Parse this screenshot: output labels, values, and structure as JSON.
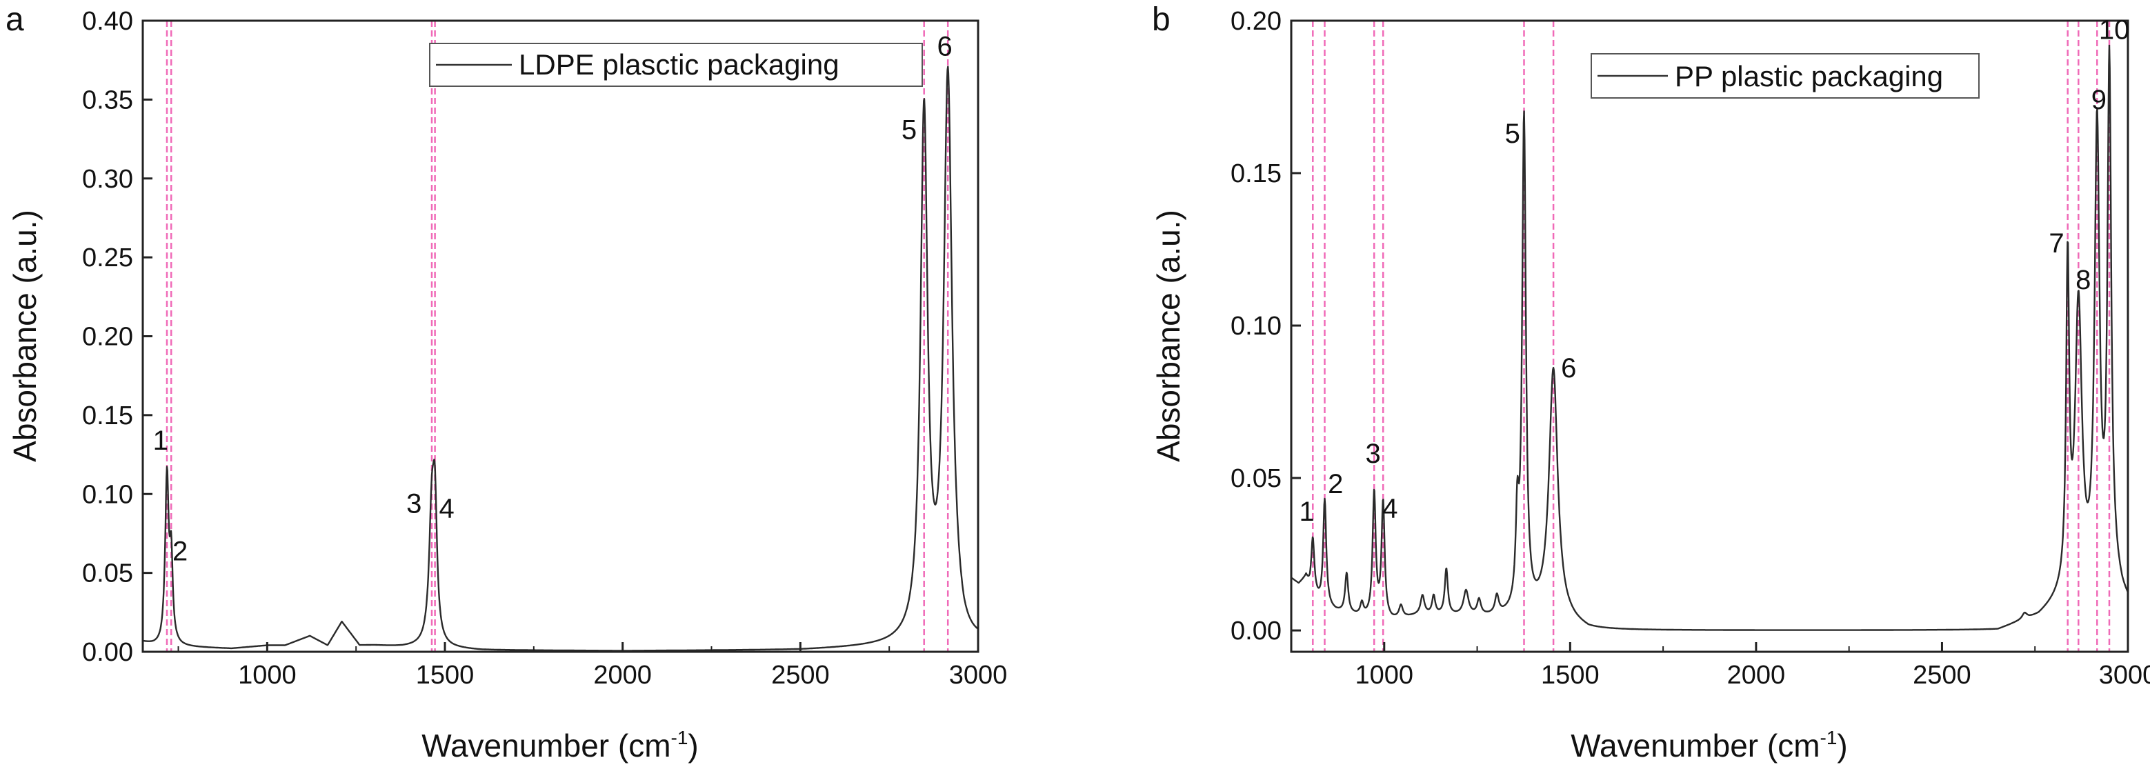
{
  "chart_data": [
    {
      "type": "line",
      "panel_letter": "a",
      "legend": "LDPE plasctic packaging",
      "xlabel_main": "Wavenumber (cm",
      "xlabel_sup": "-1",
      "xlabel_end": ")",
      "ylabel": "Absorbance (a.u.)",
      "xlim": [
        650,
        3000
      ],
      "ylim": [
        0,
        0.4
      ],
      "xticks": [
        1000,
        1500,
        2000,
        2500,
        3000
      ],
      "yticks": [
        0.0,
        0.05,
        0.1,
        0.15,
        0.2,
        0.25,
        0.3,
        0.35,
        0.4
      ],
      "ytick_labels": [
        "0.00",
        "0.05",
        "0.10",
        "0.15",
        "0.20",
        "0.25",
        "0.30",
        "0.35",
        "0.40"
      ],
      "vlines": [
        718,
        730,
        1463,
        1472,
        2848,
        2915
      ],
      "peak_labels": [
        {
          "text": "1",
          "x": 700,
          "y": 0.128
        },
        {
          "text": "2",
          "x": 755,
          "y": 0.058
        },
        {
          "text": "3",
          "x": 1413,
          "y": 0.088
        },
        {
          "text": "4",
          "x": 1505,
          "y": 0.085
        },
        {
          "text": "5",
          "x": 2806,
          "y": 0.325
        },
        {
          "text": "6",
          "x": 2906,
          "y": 0.378
        }
      ],
      "series": {
        "name": "LDPE plasctic packaging",
        "baseline": [
          [
            650,
            0.006
          ],
          [
            680,
            0.004
          ],
          [
            700,
            0.003
          ],
          [
            710,
            0.004
          ],
          [
            760,
            0.003
          ],
          [
            900,
            0.002
          ],
          [
            1000,
            0.004
          ],
          [
            1050,
            0.004
          ],
          [
            1120,
            0.01
          ],
          [
            1170,
            0.004
          ],
          [
            1210,
            0.019
          ],
          [
            1260,
            0.004
          ],
          [
            1300,
            0.004
          ],
          [
            1380,
            0.003
          ],
          [
            1440,
            0.003
          ],
          [
            1520,
            0.002
          ],
          [
            1600,
            0.001
          ],
          [
            2000,
            0.0005
          ],
          [
            2500,
            0.001
          ],
          [
            2780,
            0.003
          ],
          [
            2880,
            0.003
          ],
          [
            2940,
            0.004
          ],
          [
            2960,
            0.0
          ],
          [
            3000,
            0.003
          ]
        ],
        "peaks": [
          {
            "center": 718,
            "height": 0.106,
            "width": 6
          },
          {
            "center": 730,
            "height": 0.051,
            "width": 5
          },
          {
            "center": 1463,
            "height": 0.08,
            "width": 9
          },
          {
            "center": 1472,
            "height": 0.075,
            "width": 7
          },
          {
            "center": 2848,
            "height": 0.333,
            "width": 12
          },
          {
            "center": 2915,
            "height": 0.357,
            "width": 14
          }
        ]
      }
    },
    {
      "type": "line",
      "panel_letter": "b",
      "legend": "PP plastic packaging",
      "xlabel_main": "Wavenumber (cm",
      "xlabel_sup": "-1",
      "xlabel_end": ")",
      "ylabel": "Absorbance (a.u.)",
      "xlim": [
        750,
        3000
      ],
      "ylim": [
        -0.007,
        0.2
      ],
      "xticks": [
        1000,
        1500,
        2000,
        2500,
        3000
      ],
      "yticks": [
        0.0,
        0.05,
        0.1,
        0.15,
        0.2
      ],
      "ytick_labels": [
        "0.00",
        "0.05",
        "0.10",
        "0.15",
        "0.20"
      ],
      "vlines": [
        808,
        840,
        973,
        997,
        1376,
        1455,
        2838,
        2867,
        2917,
        2950
      ],
      "peak_labels": [
        {
          "text": "1",
          "x": 792,
          "y": 0.036
        },
        {
          "text": "2",
          "x": 869,
          "y": 0.045
        },
        {
          "text": "3",
          "x": 970,
          "y": 0.055
        },
        {
          "text": "4",
          "x": 1016,
          "y": 0.037
        },
        {
          "text": "5",
          "x": 1345,
          "y": 0.16
        },
        {
          "text": "6",
          "x": 1496,
          "y": 0.083
        },
        {
          "text": "7",
          "x": 2808,
          "y": 0.124
        },
        {
          "text": "8",
          "x": 2880,
          "y": 0.112
        },
        {
          "text": "9",
          "x": 2922,
          "y": 0.171
        },
        {
          "text": "10",
          "x": 2963,
          "y": 0.194
        }
      ],
      "series": {
        "name": "PP plastic packaging",
        "baseline": [
          [
            750,
            0.017
          ],
          [
            770,
            0.015
          ],
          [
            790,
            0.017
          ],
          [
            800,
            0.013
          ],
          [
            830,
            0.008
          ],
          [
            870,
            0.006
          ],
          [
            950,
            0.004
          ],
          [
            1020,
            0.003
          ],
          [
            1100,
            0.005
          ],
          [
            1300,
            0.004
          ],
          [
            1340,
            0.004
          ],
          [
            1420,
            0.004
          ],
          [
            1500,
            0.002
          ],
          [
            1550,
            0.0
          ],
          [
            2000,
            0.0
          ],
          [
            2500,
            0.0
          ],
          [
            2650,
            0.0
          ],
          [
            2700,
            0.002
          ],
          [
            2760,
            0.004
          ],
          [
            2830,
            0.01
          ],
          [
            2890,
            0.01
          ],
          [
            2930,
            0.012
          ],
          [
            2965,
            0.015
          ],
          [
            2985,
            0.01
          ],
          [
            3000,
            0.008
          ]
        ],
        "peaks": [
          {
            "center": 808,
            "height": 0.018,
            "width": 5
          },
          {
            "center": 840,
            "height": 0.035,
            "width": 5
          },
          {
            "center": 899,
            "height": 0.013,
            "width": 5
          },
          {
            "center": 940,
            "height": 0.004,
            "width": 5
          },
          {
            "center": 973,
            "height": 0.041,
            "width": 5
          },
          {
            "center": 997,
            "height": 0.038,
            "width": 5
          },
          {
            "center": 1045,
            "height": 0.004,
            "width": 6
          },
          {
            "center": 1103,
            "height": 0.006,
            "width": 6
          },
          {
            "center": 1133,
            "height": 0.006,
            "width": 5
          },
          {
            "center": 1167,
            "height": 0.015,
            "width": 5
          },
          {
            "center": 1220,
            "height": 0.008,
            "width": 8
          },
          {
            "center": 1255,
            "height": 0.005,
            "width": 6
          },
          {
            "center": 1303,
            "height": 0.006,
            "width": 6
          },
          {
            "center": 1358,
            "height": 0.028,
            "width": 5
          },
          {
            "center": 1376,
            "height": 0.162,
            "width": 6
          },
          {
            "center": 1455,
            "height": 0.082,
            "width": 14
          },
          {
            "center": 2722,
            "height": 0.002,
            "width": 8
          },
          {
            "center": 2838,
            "height": 0.105,
            "width": 5
          },
          {
            "center": 2867,
            "height": 0.094,
            "width": 11
          },
          {
            "center": 2917,
            "height": 0.15,
            "width": 8
          },
          {
            "center": 2950,
            "height": 0.168,
            "width": 6
          }
        ]
      }
    }
  ]
}
